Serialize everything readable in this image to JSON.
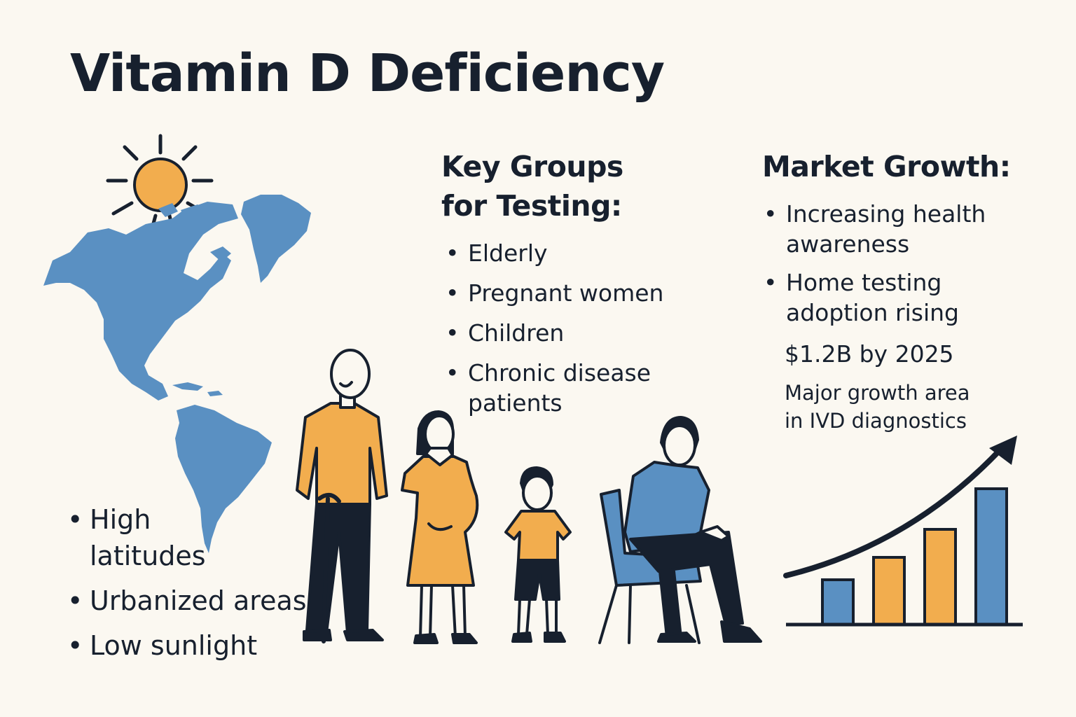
{
  "title": "Vitamin D Deficiency",
  "risk_regions": {
    "items": [
      "High latitudes",
      "Urbanized areas",
      "Low sunlight"
    ]
  },
  "key_groups": {
    "heading_line1": "Key Groups",
    "heading_line2": "for Testing:",
    "items": [
      "Elderly",
      "Pregnant women",
      "Children",
      "Chronic disease patients"
    ]
  },
  "market_growth": {
    "heading": "Market Growth:",
    "items": [
      "Increasing health awareness",
      "Home testing adoption rising"
    ],
    "value": "$1.2B by 2025",
    "note_line1": "Major growth area",
    "note_line2": "in IVD diagnostics"
  },
  "colors": {
    "background": "#fbf8f1",
    "ink": "#17202e",
    "orange": "#f2ad4e",
    "blue": "#5a90c2"
  },
  "icons": [
    "sun-icon",
    "americas-map-icon",
    "elderly-person-icon",
    "pregnant-woman-icon",
    "child-icon",
    "seated-man-icon",
    "growth-chart-icon",
    "trend-arrow-icon"
  ]
}
